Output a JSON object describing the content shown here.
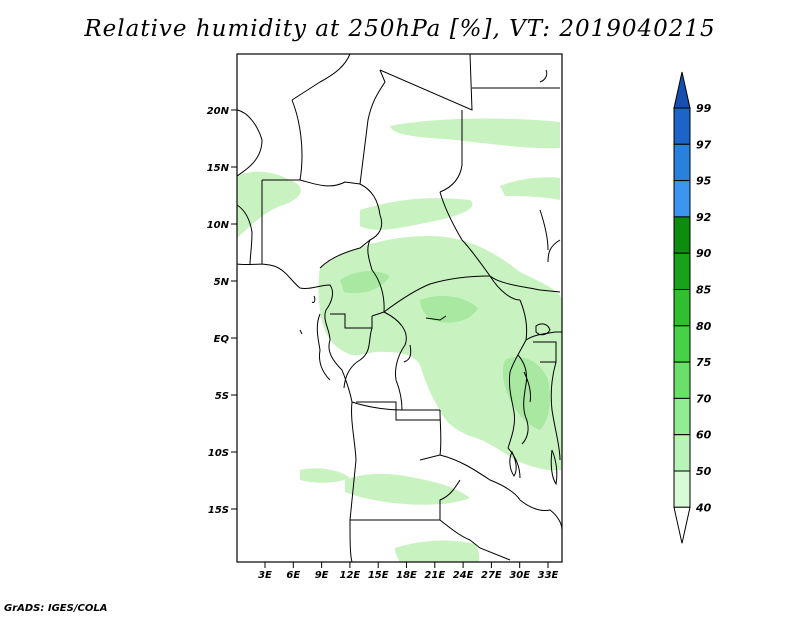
{
  "title": "Relative humidity at 250hPa [%], VT: 2019040215",
  "credit": "GrADS: IGES/COLA",
  "map": {
    "lat_labels": [
      "20N",
      "15N",
      "10N",
      "5N",
      "EQ",
      "5S",
      "10S",
      "15S"
    ],
    "lon_labels": [
      "3E",
      "6E",
      "9E",
      "12E",
      "15E",
      "18E",
      "21E",
      "24E",
      "27E",
      "30E",
      "33E"
    ]
  },
  "colorbar": {
    "labels": [
      "99",
      "97",
      "95",
      "92",
      "90",
      "85",
      "80",
      "75",
      "70",
      "60",
      "50",
      "40"
    ],
    "colors": [
      "#1c64c8",
      "#2882dc",
      "#3c96f0",
      "#0e8c0e",
      "#19a119",
      "#31be31",
      "#47d147",
      "#6ae06a",
      "#92ec92",
      "#b8f4b8",
      "#d7fad7",
      "#eefeee"
    ],
    "top_color": "#1550b0",
    "bottom_color": "#ffffff"
  },
  "fill_color": "#c9f2c1",
  "fill_color_strong": "#a8e8a0"
}
